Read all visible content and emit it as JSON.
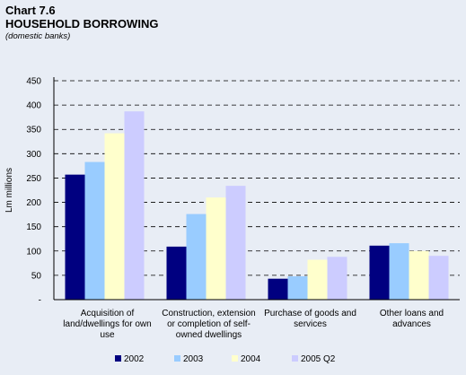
{
  "header": {
    "chart_number": "Chart 7.6",
    "title": "HOUSEHOLD BORROWING",
    "subtitle": "(domestic banks)"
  },
  "colors": {
    "background": "#e8edf5",
    "grid": "#000000",
    "series": [
      "#000080",
      "#99ccff",
      "#ffffcc",
      "#ccccff"
    ]
  },
  "chart_data": {
    "type": "bar",
    "title": "HOUSEHOLD BORROWING",
    "subtitle": "(domestic banks)",
    "xlabel": "",
    "ylabel": "Lm millions",
    "ylim": [
      0,
      450
    ],
    "yticks": [
      "-",
      "50",
      "100",
      "150",
      "200",
      "250",
      "300",
      "350",
      "400",
      "450"
    ],
    "grid": true,
    "legend_position": "bottom",
    "categories": [
      [
        "Acquisition of",
        "land/dwellings for own",
        "use"
      ],
      [
        "Construction, extension",
        "or completion of self-",
        "owned  dwellings"
      ],
      [
        "Purchase of goods and",
        "services"
      ],
      [
        "Other loans and",
        "advances"
      ]
    ],
    "series": [
      {
        "name": "2002",
        "values": [
          257,
          109,
          43,
          111
        ]
      },
      {
        "name": "2003",
        "values": [
          283,
          176,
          48,
          116
        ]
      },
      {
        "name": "2004",
        "values": [
          342,
          210,
          82,
          100
        ]
      },
      {
        "name": "2005 Q2",
        "values": [
          387,
          234,
          88,
          90
        ]
      }
    ]
  }
}
